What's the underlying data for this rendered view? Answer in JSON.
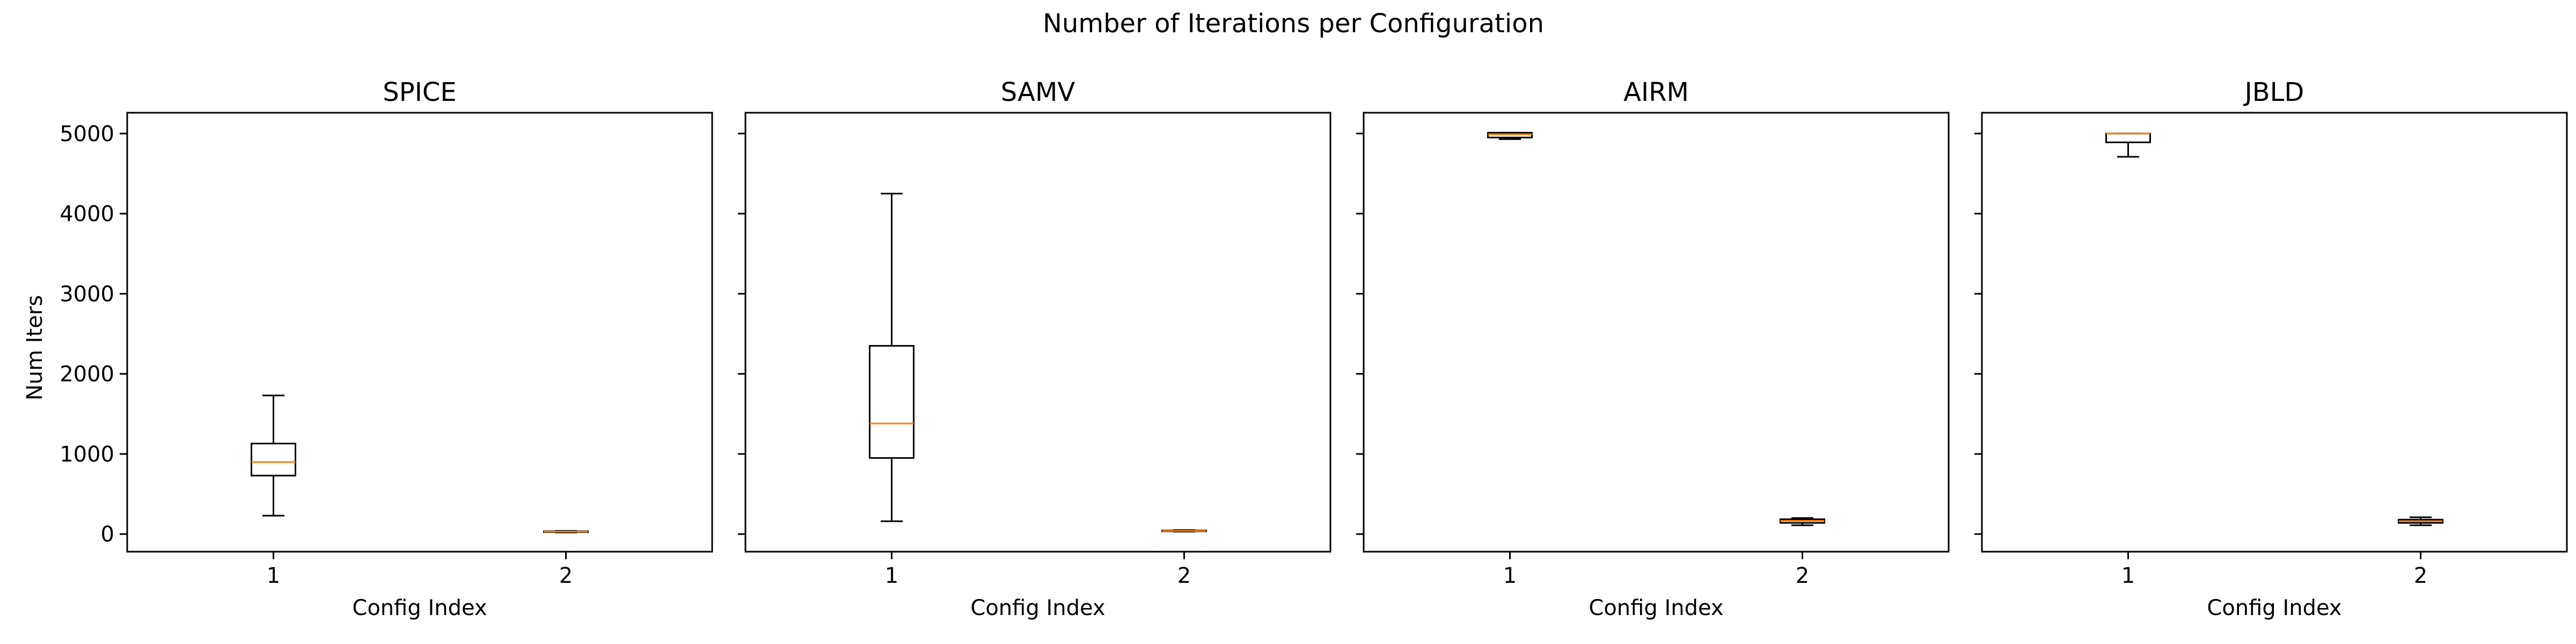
{
  "chart_data": {
    "type": "boxplot",
    "title": "Number of Iterations per Configuration",
    "ylabel": "Num Iters",
    "xlabel": "Config Index",
    "ylim": [
      -220,
      5260
    ],
    "yticks": [
      0,
      1000,
      2000,
      3000,
      4000,
      5000
    ],
    "categories": [
      "1",
      "2"
    ],
    "colors": {
      "median": "#ff7f0e",
      "box": "#000000"
    },
    "panels": [
      {
        "title": "SPICE",
        "boxes": [
          {
            "category": "1",
            "whislo": 230,
            "q1": 730,
            "med": 900,
            "q3": 1130,
            "whishi": 1730
          },
          {
            "category": "2",
            "whislo": 20,
            "q1": 25,
            "med": 30,
            "q3": 35,
            "whishi": 40
          }
        ]
      },
      {
        "title": "SAMV",
        "boxes": [
          {
            "category": "1",
            "whislo": 160,
            "q1": 950,
            "med": 1380,
            "q3": 2350,
            "whishi": 4250
          },
          {
            "category": "2",
            "whislo": 30,
            "q1": 35,
            "med": 40,
            "q3": 45,
            "whishi": 50
          }
        ]
      },
      {
        "title": "AIRM",
        "boxes": [
          {
            "category": "1",
            "whislo": 4930,
            "q1": 4950,
            "med": 4990,
            "q3": 5010,
            "whishi": 5010
          },
          {
            "category": "2",
            "whislo": 110,
            "q1": 140,
            "med": 165,
            "q3": 185,
            "whishi": 200
          }
        ]
      },
      {
        "title": "JBLD",
        "boxes": [
          {
            "category": "1",
            "whislo": 4710,
            "q1": 4890,
            "med": 5000,
            "q3": 5000,
            "whishi": 5000
          },
          {
            "category": "2",
            "whislo": 110,
            "q1": 140,
            "med": 160,
            "q3": 180,
            "whishi": 210
          }
        ]
      }
    ]
  }
}
